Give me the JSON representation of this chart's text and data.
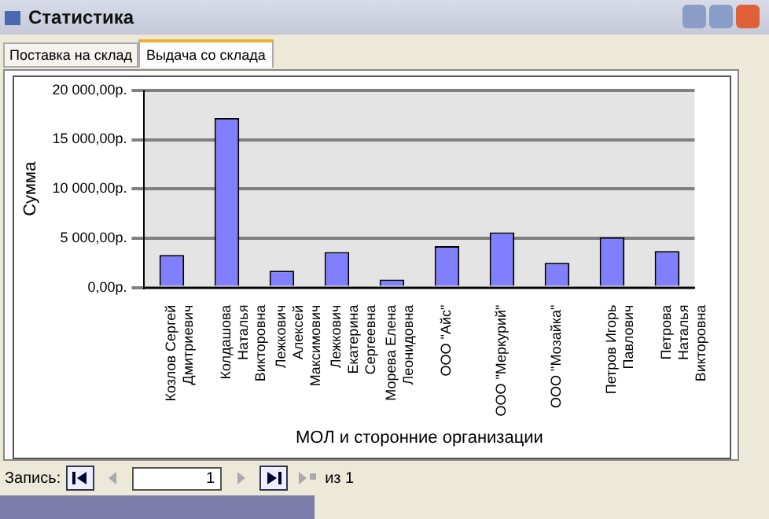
{
  "chart_data": {
    "type": "bar",
    "title": "Статистика",
    "xlabel": "МОЛ и сторонние организации",
    "ylabel": "Сумма",
    "categories": [
      "Козлов Сергей Дмитриевич",
      "Колдашова Наталья Викторовна",
      "Лежкович Алексей Максимович",
      "Лежкович Екатерина Сергеевна",
      "Морева Елена Леонидовна",
      "ООО \"Айс\"",
      "ООО \"Меркурий\"",
      "ООО \"Мозайка\"",
      "Петров Игорь Павлович",
      "Петрова Наталья Викторовна"
    ],
    "values": [
      3300,
      17200,
      1700,
      3600,
      800,
      4200,
      5600,
      2500,
      5100,
      3700
    ],
    "color": "#8080ff",
    "ylim": [
      0,
      20000
    ],
    "yticks": [
      {
        "value": 0,
        "label": "0,00р."
      },
      {
        "value": 5000,
        "label": "5 000,00р."
      },
      {
        "value": 10000,
        "label": "10 000,00р."
      },
      {
        "value": 15000,
        "label": "15 000,00р."
      },
      {
        "value": 20000,
        "label": "20 000,00р."
      }
    ],
    "grid": "y",
    "legend": false,
    "annotations": [
      "Поставка на склад",
      "Выдача со склада",
      "Запись:",
      "1",
      "из 1"
    ]
  }
}
